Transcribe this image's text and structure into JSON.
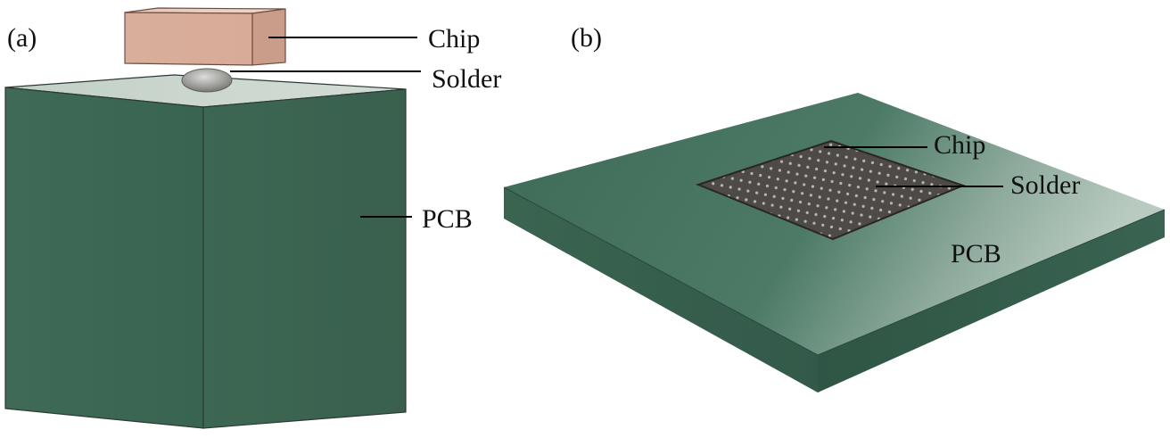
{
  "panel_a": {
    "tag": "(a)",
    "labels": {
      "chip": "Chip",
      "solder": "Solder",
      "pcb": "PCB"
    }
  },
  "panel_b": {
    "tag": "(b)",
    "labels": {
      "chip": "Chip",
      "solder": "Solder",
      "pcb": "PCB"
    }
  },
  "colors": {
    "pcb_green": "#3d6a55",
    "pcb_top_light": "#c9d6cd",
    "chip_copper": "#dcb3a0",
    "solder_grey": "#9b9b98",
    "array_dark": "#4a4643"
  }
}
